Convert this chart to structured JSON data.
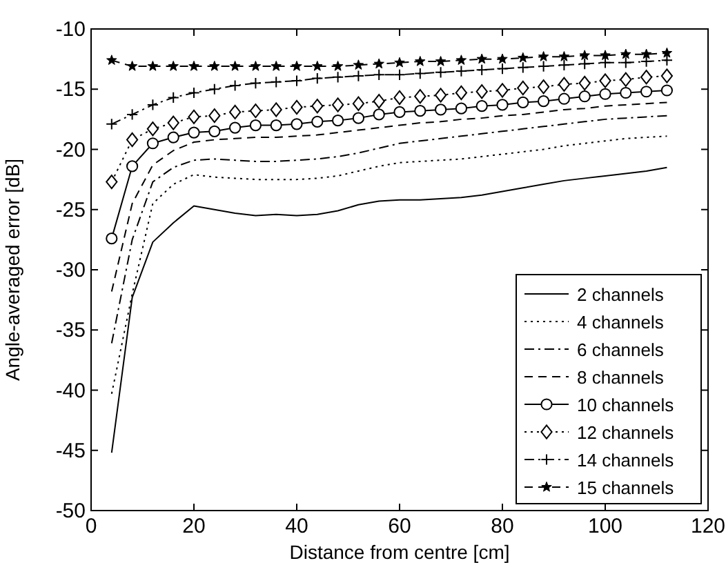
{
  "chart_data": {
    "type": "line",
    "xlabel": "Distance from centre [cm]",
    "ylabel": "Angle-averaged error [dB]",
    "x": [
      4,
      8,
      12,
      16,
      20,
      24,
      28,
      32,
      36,
      40,
      44,
      48,
      52,
      56,
      60,
      64,
      68,
      72,
      76,
      80,
      84,
      88,
      92,
      96,
      100,
      104,
      108,
      112
    ],
    "xlim": [
      0,
      120
    ],
    "xticks": [
      0,
      20,
      40,
      60,
      80,
      100,
      120
    ],
    "ylim": [
      -50,
      -10
    ],
    "yticks": [
      -50,
      -45,
      -40,
      -35,
      -30,
      -25,
      -20,
      -15,
      -10
    ],
    "grid": false,
    "legend": "bottom right",
    "series": [
      {
        "name": "2 channels",
        "color": "#000000",
        "line_style": "solid",
        "marker": "none",
        "values": [
          -45.2,
          -32.3,
          -27.7,
          -26.1,
          -24.7,
          -25.0,
          -25.3,
          -25.5,
          -25.4,
          -25.5,
          -25.4,
          -25.1,
          -24.6,
          -24.3,
          -24.2,
          -24.2,
          -24.1,
          -24.0,
          -23.8,
          -23.5,
          -23.2,
          -22.9,
          -22.6,
          -22.4,
          -22.2,
          -22.0,
          -21.8,
          -21.5
        ]
      },
      {
        "name": "4 channels",
        "color": "#000000",
        "line_style": "dotted",
        "marker": "none",
        "values": [
          -40.3,
          -32.0,
          -24.5,
          -22.9,
          -22.1,
          -22.3,
          -22.4,
          -22.5,
          -22.5,
          -22.5,
          -22.4,
          -22.2,
          -21.8,
          -21.4,
          -21.1,
          -21.0,
          -20.9,
          -20.8,
          -20.6,
          -20.4,
          -20.2,
          -20.0,
          -19.7,
          -19.5,
          -19.3,
          -19.1,
          -19.0,
          -18.9
        ]
      },
      {
        "name": "6 channels",
        "color": "#000000",
        "line_style": "dashdot",
        "marker": "none",
        "values": [
          -36.1,
          -27.5,
          -22.7,
          -21.5,
          -20.9,
          -20.8,
          -20.9,
          -21.0,
          -21.0,
          -20.9,
          -20.8,
          -20.6,
          -20.3,
          -19.9,
          -19.5,
          -19.3,
          -19.1,
          -18.9,
          -18.7,
          -18.5,
          -18.3,
          -18.1,
          -17.9,
          -17.7,
          -17.5,
          -17.4,
          -17.3,
          -17.2
        ]
      },
      {
        "name": "8 channels",
        "color": "#000000",
        "line_style": "dashed",
        "marker": "none",
        "values": [
          -31.8,
          -24.5,
          -21.3,
          -20.1,
          -19.4,
          -19.2,
          -19.1,
          -19.0,
          -19.0,
          -18.9,
          -18.8,
          -18.6,
          -18.4,
          -18.2,
          -18.0,
          -17.8,
          -17.7,
          -17.5,
          -17.4,
          -17.2,
          -17.1,
          -16.9,
          -16.7,
          -16.6,
          -16.4,
          -16.3,
          -16.2,
          -16.1
        ]
      },
      {
        "name": "10 channels",
        "color": "#000000",
        "line_style": "solid",
        "marker": "circle",
        "values": [
          -27.4,
          -21.4,
          -19.5,
          -19.0,
          -18.6,
          -18.5,
          -18.2,
          -18.0,
          -18.0,
          -17.9,
          -17.7,
          -17.6,
          -17.4,
          -17.1,
          -16.9,
          -16.8,
          -16.7,
          -16.6,
          -16.4,
          -16.3,
          -16.1,
          -16.0,
          -15.8,
          -15.6,
          -15.4,
          -15.3,
          -15.2,
          -15.1
        ]
      },
      {
        "name": "12 channels",
        "color": "#000000",
        "line_style": "dotted",
        "marker": "diamond",
        "values": [
          -22.7,
          -19.2,
          -18.3,
          -17.8,
          -17.3,
          -17.2,
          -16.9,
          -16.8,
          -16.7,
          -16.5,
          -16.4,
          -16.3,
          -16.2,
          -16.0,
          -15.7,
          -15.6,
          -15.5,
          -15.3,
          -15.2,
          -15.1,
          -14.9,
          -14.8,
          -14.6,
          -14.5,
          -14.3,
          -14.2,
          -14.0,
          -13.9
        ]
      },
      {
        "name": "14 channels",
        "color": "#000000",
        "line_style": "dashdot",
        "marker": "cross",
        "values": [
          -17.9,
          -17.1,
          -16.3,
          -15.7,
          -15.3,
          -15.0,
          -14.7,
          -14.5,
          -14.4,
          -14.3,
          -14.1,
          -14.0,
          -13.9,
          -13.8,
          -13.8,
          -13.7,
          -13.6,
          -13.5,
          -13.4,
          -13.3,
          -13.2,
          -13.1,
          -13.0,
          -12.9,
          -12.8,
          -12.8,
          -12.7,
          -12.6
        ]
      },
      {
        "name": "15 channels",
        "color": "#000000",
        "line_style": "dashed",
        "marker": "star",
        "values": [
          -12.6,
          -13.1,
          -13.1,
          -13.1,
          -13.1,
          -13.1,
          -13.1,
          -13.1,
          -13.1,
          -13.1,
          -13.1,
          -13.1,
          -13.0,
          -12.9,
          -12.8,
          -12.7,
          -12.7,
          -12.6,
          -12.5,
          -12.5,
          -12.4,
          -12.3,
          -12.3,
          -12.2,
          -12.2,
          -12.1,
          -12.1,
          -12.0
        ]
      }
    ]
  }
}
